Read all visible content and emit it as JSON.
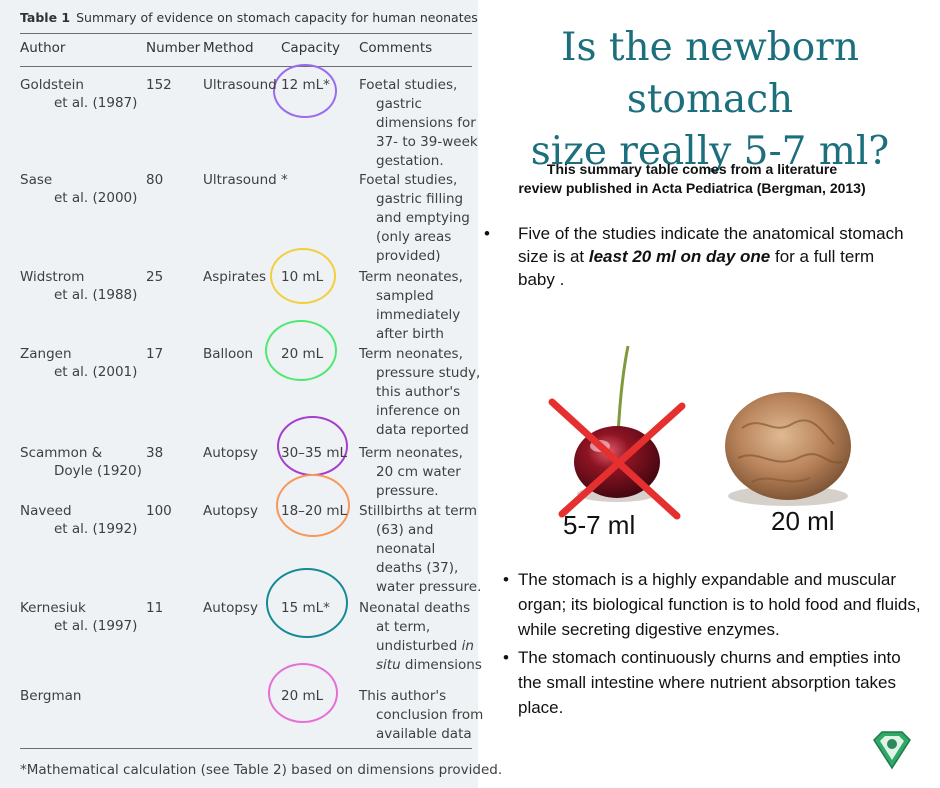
{
  "table": {
    "caption_label": "Table 1",
    "caption_text": "Summary of evidence on stomach capacity for human neonates",
    "headers": [
      "Author",
      "Number",
      "Method",
      "Capacity",
      "Comments"
    ],
    "rows": [
      {
        "author1": "Goldstein",
        "author2": "et al. (1987)",
        "number": "152",
        "method": "Ultrasound",
        "capacity": "12 mL*",
        "comment": [
          "Foetal studies,",
          "gastric",
          "dimensions for",
          "37- to 39-week",
          "gestation."
        ],
        "ring_color": "#9b6bef"
      },
      {
        "author1": "Sase",
        "author2": "et al. (2000)",
        "number": "80",
        "method": "Ultrasound",
        "capacity": "*",
        "comment": [
          "Foetal studies,",
          "gastric filling",
          "and emptying",
          "(only areas",
          "provided)"
        ],
        "ring_color": ""
      },
      {
        "author1": "Widstrom",
        "author2": "et al. (1988)",
        "number": "25",
        "method": "Aspirates",
        "capacity": "10 mL",
        "comment": [
          "Term neonates,",
          "sampled",
          "immediately",
          "after birth"
        ],
        "ring_color": "#f2cf3b"
      },
      {
        "author1": "Zangen",
        "author2": "et al. (2001)",
        "number": "17",
        "method": "Balloon",
        "capacity": "20 mL",
        "comment": [
          "Term neonates,",
          "pressure study,",
          "this author's",
          "inference on",
          "data reported"
        ],
        "ring_color": "#4fe870"
      },
      {
        "author1": "Scammon &",
        "author2": "Doyle (1920)",
        "number": "38",
        "method": "Autopsy",
        "capacity": "30–35 mL",
        "comment": [
          "Term neonates,",
          "20 cm water",
          "pressure."
        ],
        "ring_color": "#a63fd0"
      },
      {
        "author1": "Naveed",
        "author2": "et al. (1992)",
        "number": "100",
        "method": "Autopsy",
        "capacity": "18–20 mL",
        "comment": [
          "Stillbirths at term",
          "(63) and",
          "neonatal",
          "deaths (37),",
          "water pressure."
        ],
        "ring_color": "#f7995a"
      },
      {
        "author1": "Kernesiuk",
        "author2": "et al. (1997)",
        "number": "11",
        "method": "Autopsy",
        "capacity": "15 mL*",
        "comment": [
          "Neonatal deaths",
          "at term,",
          "undisturbed in",
          "situ dimensions"
        ],
        "ring_color": "#138a95"
      },
      {
        "author1": "Bergman",
        "author2": "",
        "number": "",
        "method": "",
        "capacity": "20 mL",
        "comment": [
          "This author's",
          "conclusion from",
          "available data"
        ],
        "ring_color": "#e46fd8"
      }
    ],
    "footnote": "*Mathematical calculation (see Table 2) based on dimensions provided."
  },
  "heading": {
    "line1": "Is the newborn stomach",
    "line2": "size really 5-7 ml?"
  },
  "summary": {
    "line1": "This summary table comes from a literature",
    "line2": "review published in Acta Pediatrica  (Bergman, 2013)"
  },
  "bullet_intro": {
    "marker": "•",
    "before": "Five of the studies indicate the anatomical stomach size is at ",
    "emphasis": "least 20 ml on day one",
    "after": " for a full term baby ."
  },
  "figure": {
    "cherry_label": "5-7 ml",
    "walnut_label": "20 ml",
    "cherry_color": "#8e1423",
    "walnut_color": "#b8835a",
    "cross_color": "#e63030"
  },
  "bullets": [
    {
      "marker": "•",
      "text": "The stomach is a highly expandable and muscular organ; its biological function is to hold food and fluids, while secreting digestive enzymes."
    },
    {
      "marker": "•",
      "text": "The stomach continuously churns and empties into the small intestine where nutrient absorption takes place."
    }
  ]
}
